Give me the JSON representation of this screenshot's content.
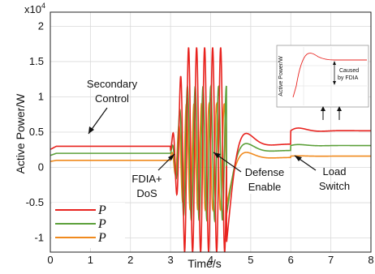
{
  "chart_data": {
    "type": "line",
    "xlabel": "Time/s",
    "ylabel": "Active Power/W",
    "y_multiplier_label": "x10",
    "y_multiplier_exp": "4",
    "xlim": [
      0,
      8
    ],
    "ylim": [
      -1.2,
      2.2
    ],
    "x_ticks": [
      "0",
      "1",
      "2",
      "3",
      "4",
      "5",
      "6",
      "7",
      "8"
    ],
    "y_ticks": [
      "-1",
      "-0.5",
      "0",
      "0.5",
      "1",
      "1.5",
      "2"
    ],
    "y_tick_values": [
      -1,
      -0.5,
      0,
      0.5,
      1,
      1.5,
      2
    ],
    "grid": true,
    "legend_position": "bottom-left",
    "series": [
      {
        "name": "P",
        "color": "#e8231f",
        "pre_value": 0.3,
        "attack_amplitude": 1.45,
        "attack_center": 0.25,
        "post_defense_value": 0.33,
        "post_switch_value": 0.52
      },
      {
        "name": "P",
        "color": "#5ca03a",
        "pre_value": 0.2,
        "attack_amplitude": 0.95,
        "attack_center": 0.2,
        "post_defense_value": 0.24,
        "post_switch_value": 0.31
      },
      {
        "name": "P",
        "color": "#f08a1e",
        "pre_value": 0.1,
        "attack_amplitude": 0.75,
        "attack_center": 0.15,
        "post_defense_value": 0.14,
        "post_switch_value": 0.16
      }
    ],
    "events": {
      "attack_start": 3.0,
      "attack_end": 4.4,
      "defense_time": 4.4,
      "load_switch_time": 6.0
    },
    "annotations": [
      {
        "id": "secondary",
        "lines": [
          "Secondary",
          "Control"
        ]
      },
      {
        "id": "fdia",
        "lines": [
          "FDIA+",
          "DoS"
        ]
      },
      {
        "id": "defense",
        "lines": [
          "Defense",
          "Enable"
        ]
      },
      {
        "id": "load",
        "lines": [
          "Load",
          "Switch"
        ]
      }
    ],
    "inset": {
      "ylabel": "Active Power/W",
      "note_lines": [
        "Caused",
        "by FDIA"
      ]
    }
  }
}
